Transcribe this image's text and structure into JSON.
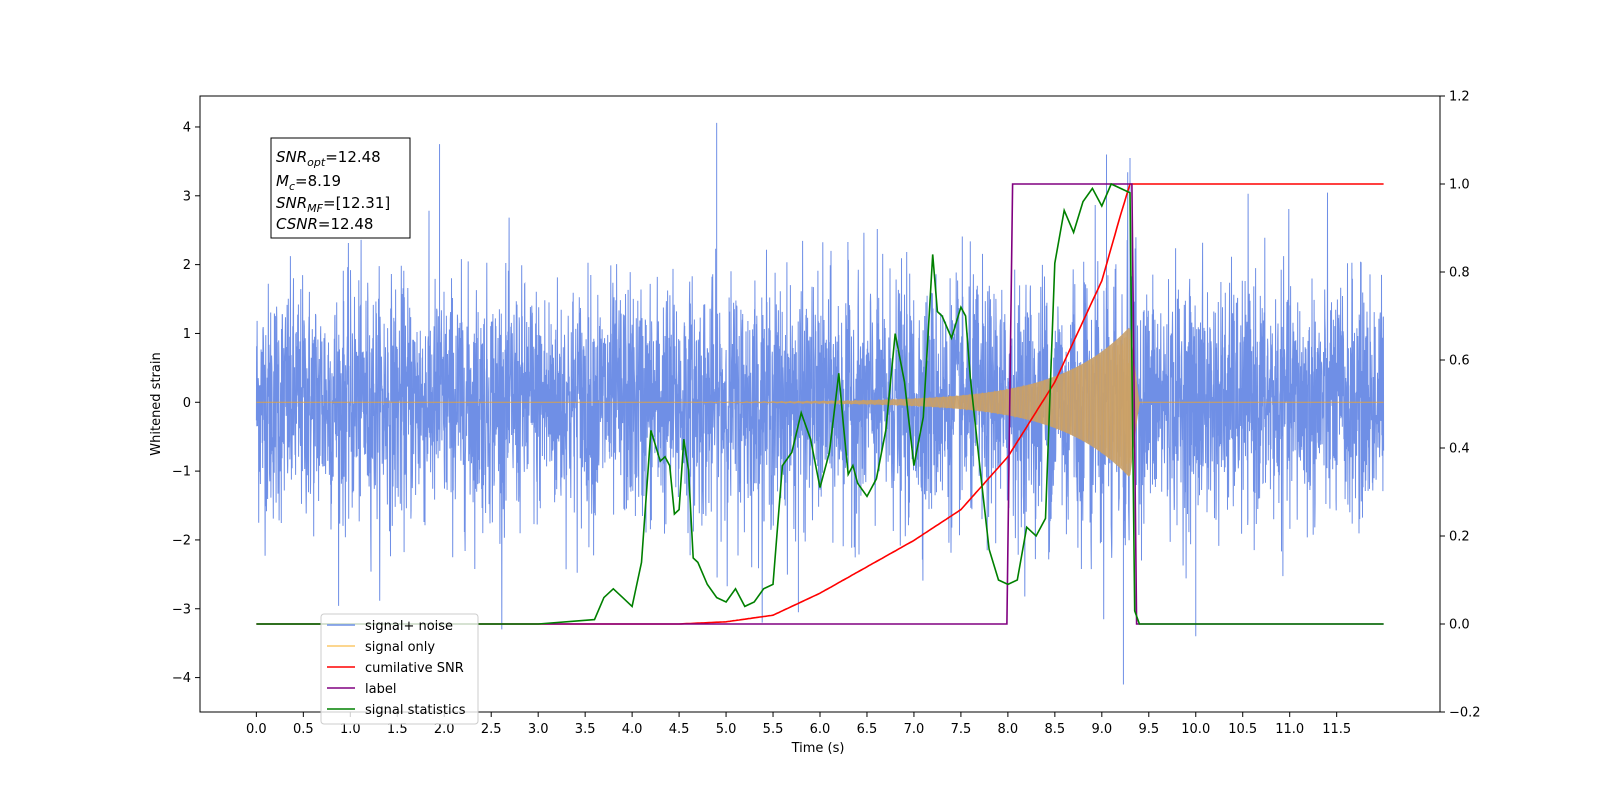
{
  "chart_data": {
    "type": "line",
    "xlabel": "Time (s)",
    "ylabel": "Whitened strain",
    "xlim": [
      -0.6,
      12.6
    ],
    "ylim": [
      -4.5,
      4.45
    ],
    "y2lim": [
      -0.2,
      1.2
    ],
    "x_ticks": [
      "0.0",
      "0.5",
      "1.0",
      "1.5",
      "2.0",
      "2.5",
      "3.0",
      "3.5",
      "4.0",
      "4.5",
      "5.0",
      "5.5",
      "6.0",
      "6.5",
      "7.0",
      "7.5",
      "8.0",
      "8.5",
      "9.0",
      "9.5",
      "10.0",
      "10.5",
      "11.0",
      "11.5"
    ],
    "y_ticks": [
      "4",
      "3",
      "2",
      "1",
      "0",
      "−1",
      "−2",
      "−3",
      "−4"
    ],
    "y2_ticks": [
      "1.2",
      "1.0",
      "0.8",
      "0.6",
      "0.4",
      "0.2",
      "0.0",
      "−0.2"
    ],
    "grid": false,
    "legend_position": "lower-left",
    "annotation": {
      "snr_opt": {
        "base": "SNR",
        "sub": "opt",
        "value": "=12.48"
      },
      "mc": {
        "base": "M",
        "sub": "c",
        "value": "=8.19"
      },
      "snr_mf": {
        "base": "SNR",
        "sub": "MF",
        "value": "=[12.31]"
      },
      "csnr": {
        "base": "CSNR",
        "value": "=12.48"
      }
    },
    "series": [
      {
        "name": "signal+ noise",
        "axis": "left",
        "color": "#6f8fe6",
        "description_values": {
          "x_range": [
            0.0,
            12.0
          ],
          "typical_amplitude": 1.5,
          "max": 4.06,
          "min": -4.1
        }
      },
      {
        "name": "signal only",
        "axis": "left",
        "color": "#f5a623",
        "chirp": {
          "start": 3.0,
          "merger": 9.3,
          "end": 9.4,
          "peak_amplitude": 1.1
        }
      },
      {
        "name": "cumilative SNR",
        "axis": "right",
        "color": "#ff0000",
        "x": [
          0.0,
          4.5,
          5.0,
          5.5,
          6.0,
          6.5,
          7.0,
          7.5,
          8.0,
          8.5,
          9.0,
          9.2,
          9.3,
          12.0
        ],
        "y": [
          0.0,
          0.0,
          0.005,
          0.02,
          0.07,
          0.13,
          0.19,
          0.26,
          0.38,
          0.55,
          0.78,
          0.93,
          1.0,
          1.0
        ]
      },
      {
        "name": "label",
        "axis": "right",
        "color": "#800080",
        "x": [
          0.0,
          7.99,
          8.05,
          9.32,
          9.37,
          12.0
        ],
        "y": [
          0.0,
          0.0,
          1.0,
          1.0,
          0.0,
          0.0
        ]
      },
      {
        "name": "signal statistics",
        "axis": "right",
        "color": "#008000",
        "x": [
          0.0,
          3.0,
          3.6,
          3.7,
          3.8,
          3.9,
          4.0,
          4.1,
          4.2,
          4.3,
          4.35,
          4.4,
          4.45,
          4.5,
          4.55,
          4.6,
          4.65,
          4.7,
          4.8,
          4.9,
          5.0,
          5.1,
          5.2,
          5.3,
          5.4,
          5.5,
          5.6,
          5.7,
          5.8,
          5.9,
          6.0,
          6.05,
          6.1,
          6.2,
          6.25,
          6.3,
          6.35,
          6.4,
          6.5,
          6.6,
          6.7,
          6.8,
          6.9,
          7.0,
          7.1,
          7.2,
          7.25,
          7.3,
          7.4,
          7.5,
          7.55,
          7.6,
          7.7,
          7.8,
          7.9,
          8.0,
          8.1,
          8.2,
          8.3,
          8.4,
          8.5,
          8.6,
          8.7,
          8.8,
          8.9,
          9.0,
          9.1,
          9.2,
          9.3,
          9.35,
          9.4,
          9.45,
          12.0
        ],
        "y": [
          0.0,
          0.0,
          0.01,
          0.06,
          0.08,
          0.06,
          0.04,
          0.14,
          0.44,
          0.37,
          0.38,
          0.36,
          0.25,
          0.26,
          0.42,
          0.35,
          0.15,
          0.14,
          0.09,
          0.06,
          0.05,
          0.08,
          0.04,
          0.05,
          0.08,
          0.09,
          0.36,
          0.39,
          0.48,
          0.42,
          0.31,
          0.35,
          0.39,
          0.57,
          0.45,
          0.34,
          0.36,
          0.32,
          0.29,
          0.33,
          0.44,
          0.66,
          0.55,
          0.36,
          0.47,
          0.84,
          0.71,
          0.7,
          0.65,
          0.72,
          0.7,
          0.56,
          0.36,
          0.17,
          0.1,
          0.09,
          0.1,
          0.22,
          0.2,
          0.24,
          0.82,
          0.94,
          0.89,
          0.96,
          0.99,
          0.95,
          1.0,
          0.99,
          0.98,
          0.03,
          0.0,
          0.0,
          0.0
        ]
      }
    ]
  },
  "legend": [
    {
      "label": "signal+ noise",
      "color": "#6f8fe6"
    },
    {
      "label": "signal only",
      "color": "#fcc96a"
    },
    {
      "label": "cumilative SNR",
      "color": "#ff0000"
    },
    {
      "label": "label",
      "color": "#800080"
    },
    {
      "label": "signal statistics",
      "color": "#008000"
    }
  ]
}
